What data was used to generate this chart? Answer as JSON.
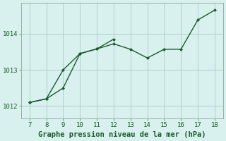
{
  "title": "Graphe pression niveau de la mer (hPa)",
  "background_color": "#d8f0ee",
  "line_color": "#1a5c2a",
  "grid_color": "#b0d0cc",
  "xlim": [
    6.5,
    18.5
  ],
  "ylim": [
    1011.65,
    1014.85
  ],
  "xticks": [
    7,
    8,
    9,
    10,
    11,
    12,
    13,
    14,
    15,
    16,
    17,
    18
  ],
  "yticks": [
    1012,
    1013,
    1014
  ],
  "series1_x": [
    7,
    8,
    9,
    10,
    11,
    12,
    13,
    14,
    15,
    16,
    17,
    18
  ],
  "series1_y": [
    1012.1,
    1012.2,
    1012.5,
    1013.45,
    1013.58,
    1013.72,
    1013.57,
    1013.33,
    1013.57,
    1013.57,
    1014.38,
    1014.65
  ],
  "series2_x": [
    7,
    8,
    9,
    10,
    11,
    12,
    13,
    14,
    15,
    16,
    17,
    18
  ],
  "series2_y": [
    1012.1,
    1012.2,
    1013.0,
    1013.45,
    1013.58,
    1013.85,
    1013.57,
    1013.33,
    1013.57,
    1013.57,
    1014.38,
    1014.65
  ],
  "title_fontsize": 7.5,
  "tick_fontsize": 6.5
}
